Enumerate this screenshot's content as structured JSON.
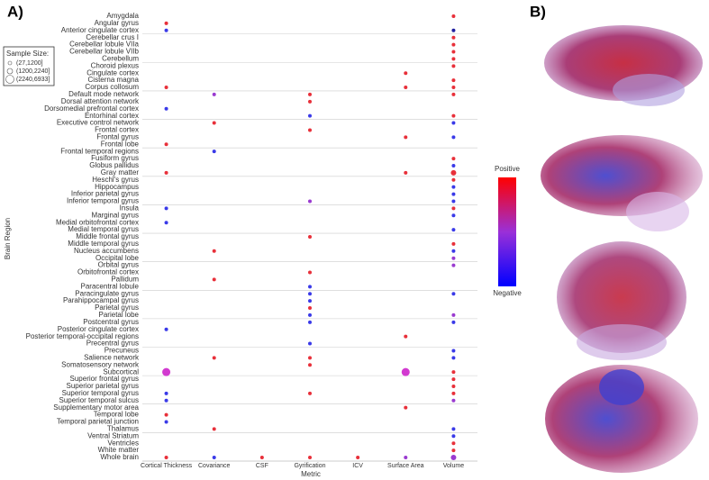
{
  "chart_data": {
    "type": "dot-matrix",
    "panel_labels": [
      "A)",
      "B)"
    ],
    "x_label": "Metric",
    "y_label": "Brain Region",
    "metrics": [
      "Cortical Thickness",
      "Covariance",
      "CSF",
      "Gyrification",
      "ICV",
      "Surface Area",
      "Volume"
    ],
    "regions": [
      "Amygdala",
      "Angular gyrus",
      "Anterior cingulate cortex",
      "Cerebellar crus I",
      "Cerebellar lobule VIIa",
      "Cerebellar lobule VIIb",
      "Cerebellum",
      "Choroid plexus",
      "Cingulate cortex",
      "Cisterna magna",
      "Corpus collosum",
      "Default mode network",
      "Dorsal attention network",
      "Dorsomedial prefrontal cortex",
      "Entorhinal cortex",
      "Executive control network",
      "Frontal cortex",
      "Frontal gyrus",
      "Frontal lobe",
      "Frontal temporal regions",
      "Fusiform gyrus",
      "Globus pallidus",
      "Gray matter",
      "Heschl's gyrus",
      "Hippocampus",
      "Inferior parietal gyrus",
      "Inferior temporal gyrus",
      "Insula",
      "Marginal gyrus",
      "Medial orbitofrontal cortex",
      "Medial temporal gyrus",
      "Middle frontal gyrus",
      "Middle temporal gyrus",
      "Nucleus accumbens",
      "Occipital lobe",
      "Orbital gyrus",
      "Orbitofrontal cortex",
      "Pallidum",
      "Paracentral lobule",
      "Paracingulate gyrus",
      "Parahippocampal gyrus",
      "Parietal gyrus",
      "Parietal lobe",
      "Postcentral gyrus",
      "Posterior cingulate cortex",
      "Posterior temporal-occipital regions",
      "Precentral gyrus",
      "Precuneus",
      "Salience network",
      "Somatosensory network",
      "Subcortical",
      "Superior frontal gyrus",
      "Superior parietal gyrus",
      "Superior temporal gyrus",
      "Superior temporal sulcus",
      "Supplementary motor area",
      "Temporal lobe",
      "Temporal parietal junction",
      "Thalamus",
      "Ventral Striatum",
      "Ventricles",
      "White matter",
      "Whole brain"
    ],
    "sample_size": {
      "title": "Sample Size:",
      "labels": [
        "(27,1200]",
        "(1200,2240]",
        "(2240,6933]"
      ]
    },
    "colorbar": {
      "high": "Positive",
      "low": "Negative",
      "colors": [
        "#ff0000",
        "#9a30d8",
        "#0000ff"
      ]
    },
    "points": [
      {
        "region": 0,
        "metric": 6,
        "color": "#e8303a",
        "size": 0
      },
      {
        "region": 1,
        "metric": 0,
        "color": "#e8303a",
        "size": 0
      },
      {
        "region": 2,
        "metric": 0,
        "color": "#3a3ae8",
        "size": 0
      },
      {
        "region": 2,
        "metric": 6,
        "color": "#2020a0",
        "size": 0
      },
      {
        "region": 3,
        "metric": 6,
        "color": "#e8303a",
        "size": 0
      },
      {
        "region": 4,
        "metric": 6,
        "color": "#e8303a",
        "size": 0
      },
      {
        "region": 5,
        "metric": 6,
        "color": "#e8303a",
        "size": 0
      },
      {
        "region": 6,
        "metric": 6,
        "color": "#e8303a",
        "size": 0
      },
      {
        "region": 7,
        "metric": 6,
        "color": "#e8303a",
        "size": 0
      },
      {
        "region": 8,
        "metric": 5,
        "color": "#e8303a",
        "size": 0
      },
      {
        "region": 9,
        "metric": 6,
        "color": "#e8303a",
        "size": 0
      },
      {
        "region": 10,
        "metric": 0,
        "color": "#e8303a",
        "size": 0
      },
      {
        "region": 10,
        "metric": 5,
        "color": "#e8303a",
        "size": 0
      },
      {
        "region": 10,
        "metric": 6,
        "color": "#e8303a",
        "size": 0
      },
      {
        "region": 11,
        "metric": 1,
        "color": "#9a3ad0",
        "size": 0
      },
      {
        "region": 11,
        "metric": 3,
        "color": "#e8303a",
        "size": 0
      },
      {
        "region": 11,
        "metric": 6,
        "color": "#e8303a",
        "size": 0
      },
      {
        "region": 12,
        "metric": 3,
        "color": "#e8303a",
        "size": 0
      },
      {
        "region": 13,
        "metric": 0,
        "color": "#3a3ae8",
        "size": 0
      },
      {
        "region": 14,
        "metric": 3,
        "color": "#3a3ae8",
        "size": 0
      },
      {
        "region": 14,
        "metric": 6,
        "color": "#e8303a",
        "size": 0
      },
      {
        "region": 15,
        "metric": 1,
        "color": "#e8303a",
        "size": 0
      },
      {
        "region": 15,
        "metric": 6,
        "color": "#3a3ae8",
        "size": 0
      },
      {
        "region": 16,
        "metric": 3,
        "color": "#e8303a",
        "size": 0
      },
      {
        "region": 17,
        "metric": 5,
        "color": "#e8303a",
        "size": 0
      },
      {
        "region": 17,
        "metric": 6,
        "color": "#3a3ae8",
        "size": 0
      },
      {
        "region": 18,
        "metric": 0,
        "color": "#e8303a",
        "size": 0
      },
      {
        "region": 19,
        "metric": 1,
        "color": "#3a3ae8",
        "size": 0
      },
      {
        "region": 20,
        "metric": 6,
        "color": "#e8303a",
        "size": 0
      },
      {
        "region": 21,
        "metric": 6,
        "color": "#3a3ae8",
        "size": 0
      },
      {
        "region": 22,
        "metric": 0,
        "color": "#e8303a",
        "size": 0
      },
      {
        "region": 22,
        "metric": 5,
        "color": "#e8303a",
        "size": 0
      },
      {
        "region": 22,
        "metric": 6,
        "color": "#e8303a",
        "size": 1
      },
      {
        "region": 23,
        "metric": 6,
        "color": "#e8303a",
        "size": 0
      },
      {
        "region": 24,
        "metric": 6,
        "color": "#3a3ae8",
        "size": 0
      },
      {
        "region": 25,
        "metric": 6,
        "color": "#3a3ae8",
        "size": 0
      },
      {
        "region": 26,
        "metric": 3,
        "color": "#9a3ad0",
        "size": 0
      },
      {
        "region": 26,
        "metric": 6,
        "color": "#3a3ae8",
        "size": 0
      },
      {
        "region": 27,
        "metric": 0,
        "color": "#3a3ae8",
        "size": 0
      },
      {
        "region": 27,
        "metric": 6,
        "color": "#e8303a",
        "size": 0
      },
      {
        "region": 28,
        "metric": 6,
        "color": "#3a3ae8",
        "size": 0
      },
      {
        "region": 29,
        "metric": 0,
        "color": "#3a3ae8",
        "size": 0
      },
      {
        "region": 30,
        "metric": 6,
        "color": "#3a3ae8",
        "size": 0
      },
      {
        "region": 31,
        "metric": 3,
        "color": "#e8303a",
        "size": 0
      },
      {
        "region": 32,
        "metric": 6,
        "color": "#e8303a",
        "size": 0
      },
      {
        "region": 33,
        "metric": 1,
        "color": "#e8303a",
        "size": 0
      },
      {
        "region": 33,
        "metric": 6,
        "color": "#3a3ae8",
        "size": 0
      },
      {
        "region": 34,
        "metric": 6,
        "color": "#9a3ad0",
        "size": 0
      },
      {
        "region": 35,
        "metric": 6,
        "color": "#9a3ad0",
        "size": 0
      },
      {
        "region": 36,
        "metric": 3,
        "color": "#e8303a",
        "size": 0
      },
      {
        "region": 37,
        "metric": 1,
        "color": "#e8303a",
        "size": 0
      },
      {
        "region": 38,
        "metric": 3,
        "color": "#3a3ae8",
        "size": 0
      },
      {
        "region": 39,
        "metric": 3,
        "color": "#3a3ae8",
        "size": 0
      },
      {
        "region": 39,
        "metric": 6,
        "color": "#3a3ae8",
        "size": 0
      },
      {
        "region": 40,
        "metric": 3,
        "color": "#3a3ae8",
        "size": 0
      },
      {
        "region": 41,
        "metric": 3,
        "color": "#e8303a",
        "size": 0
      },
      {
        "region": 42,
        "metric": 3,
        "color": "#3a3ae8",
        "size": 0
      },
      {
        "region": 42,
        "metric": 6,
        "color": "#9a3ad0",
        "size": 0
      },
      {
        "region": 43,
        "metric": 3,
        "color": "#3a3ae8",
        "size": 0
      },
      {
        "region": 43,
        "metric": 6,
        "color": "#3a3ae8",
        "size": 0
      },
      {
        "region": 44,
        "metric": 0,
        "color": "#3a3ae8",
        "size": 0
      },
      {
        "region": 45,
        "metric": 5,
        "color": "#e8303a",
        "size": 0
      },
      {
        "region": 46,
        "metric": 3,
        "color": "#3a3ae8",
        "size": 0
      },
      {
        "region": 47,
        "metric": 6,
        "color": "#3a3ae8",
        "size": 0
      },
      {
        "region": 48,
        "metric": 1,
        "color": "#e8303a",
        "size": 0
      },
      {
        "region": 48,
        "metric": 3,
        "color": "#e8303a",
        "size": 0
      },
      {
        "region": 48,
        "metric": 6,
        "color": "#3a3ae8",
        "size": 0
      },
      {
        "region": 49,
        "metric": 3,
        "color": "#e8303a",
        "size": 0
      },
      {
        "region": 50,
        "metric": 0,
        "color": "#d23ad0",
        "size": 2
      },
      {
        "region": 50,
        "metric": 5,
        "color": "#d23ad0",
        "size": 2
      },
      {
        "region": 50,
        "metric": 6,
        "color": "#e8303a",
        "size": 0
      },
      {
        "region": 51,
        "metric": 6,
        "color": "#e8303a",
        "size": 0
      },
      {
        "region": 52,
        "metric": 6,
        "color": "#e8303a",
        "size": 0
      },
      {
        "region": 53,
        "metric": 0,
        "color": "#3a3ae8",
        "size": 0
      },
      {
        "region": 53,
        "metric": 3,
        "color": "#e8303a",
        "size": 0
      },
      {
        "region": 53,
        "metric": 6,
        "color": "#e8303a",
        "size": 0
      },
      {
        "region": 54,
        "metric": 0,
        "color": "#3a3ae8",
        "size": 0
      },
      {
        "region": 54,
        "metric": 6,
        "color": "#9a3ad0",
        "size": 0
      },
      {
        "region": 55,
        "metric": 5,
        "color": "#e8303a",
        "size": 0
      },
      {
        "region": 56,
        "metric": 0,
        "color": "#e8303a",
        "size": 0
      },
      {
        "region": 57,
        "metric": 0,
        "color": "#3a3ae8",
        "size": 0
      },
      {
        "region": 58,
        "metric": 1,
        "color": "#e8303a",
        "size": 0
      },
      {
        "region": 58,
        "metric": 6,
        "color": "#3a3ae8",
        "size": 0
      },
      {
        "region": 59,
        "metric": 6,
        "color": "#3a3ae8",
        "size": 0
      },
      {
        "region": 60,
        "metric": 6,
        "color": "#e8303a",
        "size": 0
      },
      {
        "region": 61,
        "metric": 6,
        "color": "#e8303a",
        "size": 0
      },
      {
        "region": 62,
        "metric": 0,
        "color": "#e8303a",
        "size": 0
      },
      {
        "region": 62,
        "metric": 1,
        "color": "#3a3ae8",
        "size": 0
      },
      {
        "region": 62,
        "metric": 2,
        "color": "#e8303a",
        "size": 0
      },
      {
        "region": 62,
        "metric": 3,
        "color": "#e8303a",
        "size": 0
      },
      {
        "region": 62,
        "metric": 4,
        "color": "#e8303a",
        "size": 0
      },
      {
        "region": 62,
        "metric": 5,
        "color": "#9a3ad0",
        "size": 0
      },
      {
        "region": 62,
        "metric": 6,
        "color": "#9a3ad0",
        "size": 1
      }
    ]
  }
}
